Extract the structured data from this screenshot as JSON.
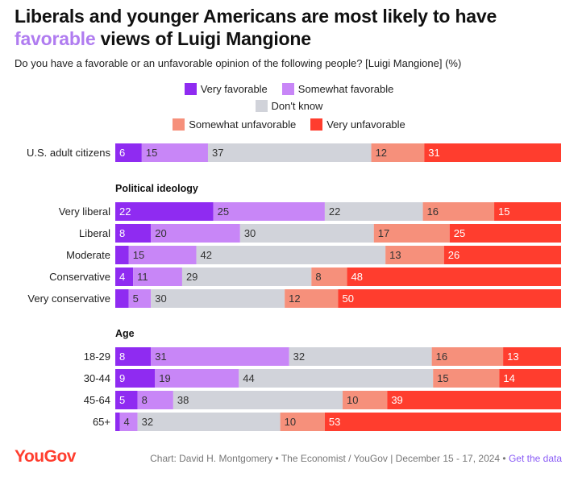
{
  "title_part1": "Liberals and younger Americans are most likely to have",
  "title_highlight": "favorable",
  "title_part2": " views of Luigi Mangione",
  "subtitle": "Do you have a favorable or an unfavorable opinion of the following people? [Luigi Mangione] (%)",
  "colors": {
    "very_favorable": "#8f2bf1",
    "somewhat_favorable": "#c886f7",
    "dont_know": "#d1d3da",
    "somewhat_unfavorable": "#f6907b",
    "very_unfavorable": "#ff3d2e",
    "highlight": "#b07cf0"
  },
  "chart_data": {
    "type": "bar",
    "stacked": true,
    "orientation": "horizontal",
    "title": "Liberals and younger Americans are most likely to have favorable views of Luigi Mangione",
    "subtitle": "Do you have a favorable or an unfavorable opinion of the following people? [Luigi Mangione] (%)",
    "legend_position": "top-center",
    "series_names": [
      "Very favorable",
      "Somewhat favorable",
      "Don't know",
      "Somewhat unfavorable",
      "Very unfavorable"
    ],
    "groups": [
      {
        "heading": "",
        "rows": [
          {
            "label": "U.S. adult citizens",
            "values": [
              6,
              15,
              37,
              12,
              31
            ]
          }
        ]
      },
      {
        "heading": "Political ideology",
        "rows": [
          {
            "label": "Very liberal",
            "values": [
              22,
              25,
              22,
              16,
              15
            ]
          },
          {
            "label": "Liberal",
            "values": [
              8,
              20,
              30,
              17,
              25
            ]
          },
          {
            "label": "Moderate",
            "values": [
              3,
              15,
              42,
              13,
              26
            ]
          },
          {
            "label": "Conservative",
            "values": [
              4,
              11,
              29,
              8,
              48
            ]
          },
          {
            "label": "Very conservative",
            "values": [
              3,
              5,
              30,
              12,
              50
            ]
          }
        ]
      },
      {
        "heading": "Age",
        "rows": [
          {
            "label": "18-29",
            "values": [
              8,
              31,
              32,
              16,
              13
            ]
          },
          {
            "label": "30-44",
            "values": [
              9,
              19,
              44,
              15,
              14
            ]
          },
          {
            "label": "45-64",
            "values": [
              5,
              8,
              38,
              10,
              39
            ]
          },
          {
            "label": "65+",
            "values": [
              1,
              4,
              32,
              10,
              53
            ]
          }
        ]
      }
    ],
    "hidden_labels": [
      {
        "row": "Moderate",
        "segment": 0
      },
      {
        "row": "Very conservative",
        "segment": 0
      },
      {
        "row": "65+",
        "segment": 0
      }
    ]
  },
  "footer": {
    "logo": "YouGov",
    "source": "Chart: David H. Montgomery • The Economist / YouGov | December 15 - 17, 2024 • ",
    "link": "Get the data"
  }
}
